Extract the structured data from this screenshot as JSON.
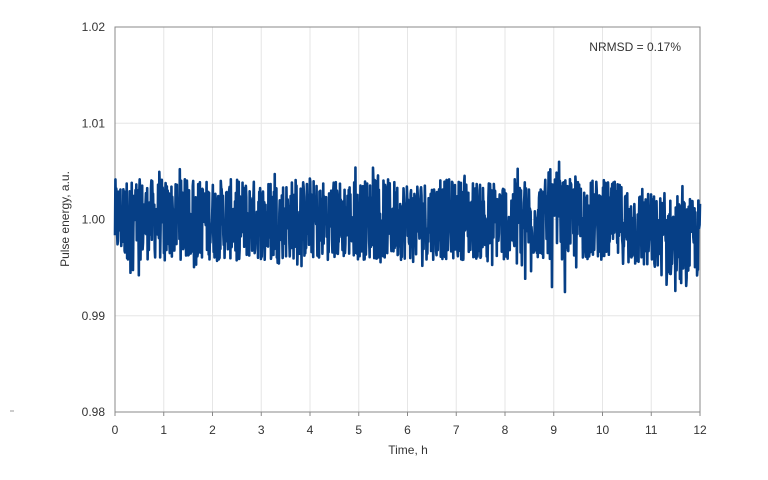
{
  "chart_data": {
    "type": "line",
    "title": "",
    "xlabel": "Time, h",
    "ylabel": "Pulse energy, a.u.",
    "xlim": [
      0,
      12
    ],
    "ylim": [
      0.98,
      1.02
    ],
    "x_ticks": [
      "0",
      "1",
      "2",
      "3",
      "4",
      "5",
      "6",
      "7",
      "8",
      "9",
      "10",
      "11",
      "12"
    ],
    "y_ticks": [
      "0.98",
      "0.99",
      "1.00",
      "1.01",
      "1.02"
    ],
    "grid": true,
    "annotation": "NRMSD = 0.17%",
    "series_color": "#063f86",
    "series": [
      {
        "mean": 1.0,
        "band": [
          0.996,
          1.004
        ],
        "extremes": [
          0.9915,
          1.0062
        ],
        "envelope": {
          "x": [
            0,
            1,
            2,
            3,
            4,
            5,
            6,
            7,
            8,
            9,
            10,
            10.5,
            11,
            11.5,
            12
          ],
          "mean": [
            1.0,
            1.0,
            1.0,
            1.0,
            1.0,
            1.0,
            1.0,
            1.0,
            1.0,
            1.0,
            1.0,
            0.9995,
            0.9985,
            0.998,
            0.998
          ],
          "max": [
            1.0055,
            1.0058,
            1.005,
            1.0052,
            1.0058,
            1.0055,
            1.0055,
            1.0055,
            1.0055,
            1.006,
            1.006,
            1.0055,
            1.0045,
            1.004,
            1.004
          ],
          "min": [
            0.9925,
            0.9945,
            0.995,
            0.9955,
            0.995,
            0.9955,
            0.995,
            0.9955,
            0.995,
            0.9915,
            0.995,
            0.994,
            0.9925,
            0.992,
            0.9925
          ]
        }
      }
    ]
  }
}
